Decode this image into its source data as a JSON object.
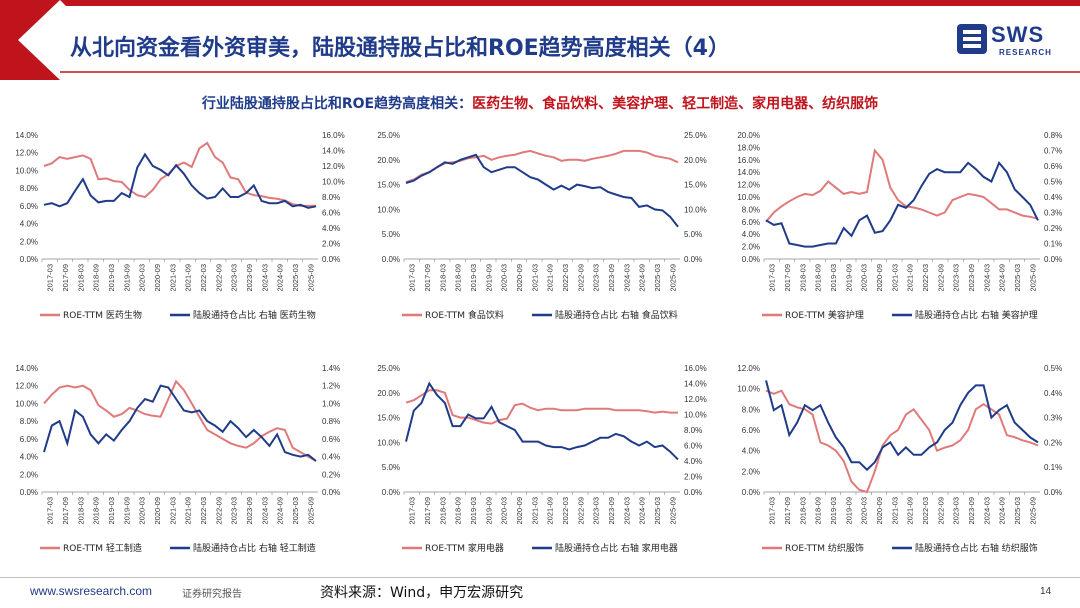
{
  "header": {
    "title": "从北向资金看外资审美，陆股通持股占比和ROE趋势高度相关（4）",
    "logo_text": "SWS",
    "logo_sub": "RESEARCH"
  },
  "subtitle": {
    "blue": "行业陆股通持股占比和ROE趋势高度相关：",
    "red": "医药生物、食品饮料、美容护理、轻工制造、家用电器、纺织服饰"
  },
  "colors": {
    "roe": "#e07a7a",
    "holding": "#1f3b8a",
    "brand": "#1f3b8a",
    "accent": "#c0141c"
  },
  "x_labels": [
    "2017-03",
    "2017-09",
    "2018-03",
    "2018-09",
    "2019-03",
    "2019-09",
    "2020-03",
    "2020-09",
    "2021-03",
    "2021-09",
    "2022-03",
    "2022-09",
    "2023-03",
    "2023-09",
    "2024-03",
    "2024-09",
    "2025-03",
    "2025-09"
  ],
  "chart_data": [
    {
      "type": "line",
      "legend": [
        "ROE-TTM 医药生物",
        "陆股通持仓占比 右轴 医药生物"
      ],
      "left_ticks": [
        "0.0%",
        "2.0%",
        "4.0%",
        "6.0%",
        "8.0%",
        "10.0%",
        "12.0%",
        "14.0%"
      ],
      "right_ticks": [
        "0.0%",
        "2.0%",
        "4.0%",
        "6.0%",
        "8.0%",
        "10.0%",
        "12.0%",
        "14.0%",
        "16.0%"
      ],
      "ylim_left": [
        0,
        14
      ],
      "ylim_right": [
        0,
        16
      ],
      "roe": [
        10.5,
        10.8,
        11.5,
        11.3,
        11.5,
        11.7,
        11.3,
        9.0,
        9.1,
        8.8,
        8.7,
        7.8,
        7.2,
        7.0,
        7.8,
        9.0,
        9.6,
        10.5,
        10.9,
        10.4,
        12.5,
        13.1,
        11.5,
        10.9,
        9.2,
        9.0,
        7.5,
        7.2,
        7.1,
        6.9,
        6.8,
        6.6,
        6.2,
        6.0,
        6.0,
        6.0
      ],
      "holding": [
        7.0,
        7.2,
        6.8,
        7.2,
        8.8,
        10.3,
        8.2,
        7.3,
        7.5,
        7.5,
        8.5,
        8.0,
        11.8,
        13.5,
        12.0,
        11.5,
        10.8,
        12.1,
        11.0,
        9.5,
        8.5,
        7.8,
        8.0,
        9.1,
        8.0,
        8.0,
        8.5,
        9.5,
        7.5,
        7.2,
        7.2,
        7.5,
        6.8,
        7.0,
        6.6,
        6.8
      ]
    },
    {
      "type": "line",
      "legend": [
        "ROE-TTM 食品饮料",
        "陆股通持仓占比 右轴 食品饮料"
      ],
      "left_ticks": [
        "0.0%",
        "5.0%",
        "10.0%",
        "15.0%",
        "20.0%",
        "25.0%"
      ],
      "right_ticks": [
        "0.0%",
        "5.0%",
        "10.0%",
        "15.0%",
        "20.0%",
        "25.0%"
      ],
      "ylim_left": [
        0,
        25
      ],
      "ylim_right": [
        0,
        25
      ],
      "roe": [
        15.5,
        16.0,
        17.0,
        17.5,
        18.5,
        19.3,
        19.5,
        19.8,
        20.3,
        20.5,
        20.8,
        20.0,
        20.5,
        20.8,
        21.0,
        21.5,
        21.8,
        21.3,
        20.8,
        20.5,
        19.8,
        20.0,
        20.0,
        19.8,
        20.2,
        20.5,
        20.8,
        21.2,
        21.8,
        21.8,
        21.8,
        21.5,
        20.8,
        20.5,
        20.2,
        19.5
      ],
      "holding": [
        15.3,
        15.8,
        16.8,
        17.5,
        18.5,
        19.5,
        19.2,
        20.0,
        20.5,
        21.0,
        18.5,
        17.5,
        18.0,
        18.5,
        18.5,
        17.5,
        16.5,
        16.0,
        15.0,
        14.0,
        14.8,
        14.0,
        15.0,
        14.7,
        14.3,
        14.5,
        13.5,
        13.0,
        12.5,
        12.3,
        10.5,
        10.8,
        10.0,
        9.8,
        8.5,
        6.5
      ]
    },
    {
      "type": "line",
      "legend": [
        "ROE-TTM 美容护理",
        "陆股通持仓占比 右轴 美容护理"
      ],
      "left_ticks": [
        "0.0%",
        "2.0%",
        "4.0%",
        "6.0%",
        "8.0%",
        "10.0%",
        "12.0%",
        "14.0%",
        "16.0%",
        "18.0%",
        "20.0%"
      ],
      "right_ticks": [
        "0.0%",
        "0.1%",
        "0.2%",
        "0.3%",
        "0.4%",
        "0.5%",
        "0.6%",
        "0.7%",
        "0.8%"
      ],
      "ylim_left": [
        0,
        20
      ],
      "ylim_right": [
        0,
        0.8
      ],
      "roe": [
        6.0,
        7.5,
        8.5,
        9.3,
        10.0,
        10.5,
        10.3,
        11.0,
        12.5,
        11.5,
        10.5,
        10.8,
        10.5,
        10.8,
        17.5,
        16.0,
        11.5,
        9.5,
        8.5,
        8.3,
        8.0,
        7.5,
        7.0,
        7.5,
        9.5,
        10.0,
        10.5,
        10.3,
        10.0,
        9.0,
        8.0,
        8.0,
        7.5,
        7.0,
        6.8,
        6.5
      ],
      "holding": [
        0.25,
        0.22,
        0.23,
        0.1,
        0.09,
        0.08,
        0.08,
        0.09,
        0.1,
        0.1,
        0.2,
        0.15,
        0.25,
        0.28,
        0.17,
        0.18,
        0.25,
        0.35,
        0.33,
        0.38,
        0.47,
        0.55,
        0.58,
        0.56,
        0.56,
        0.56,
        0.62,
        0.58,
        0.53,
        0.5,
        0.62,
        0.56,
        0.45,
        0.4,
        0.35,
        0.25
      ]
    },
    {
      "type": "line",
      "legend": [
        "ROE-TTM 轻工制造",
        "陆股通持仓占比 右轴 轻工制造"
      ],
      "left_ticks": [
        "0.0%",
        "2.0%",
        "4.0%",
        "6.0%",
        "8.0%",
        "10.0%",
        "12.0%",
        "14.0%"
      ],
      "right_ticks": [
        "0.0%",
        "0.2%",
        "0.4%",
        "0.6%",
        "0.8%",
        "1.0%",
        "1.2%",
        "1.4%"
      ],
      "ylim_left": [
        0,
        14
      ],
      "ylim_right": [
        0,
        1.4
      ],
      "roe": [
        10.0,
        11.0,
        11.8,
        12.0,
        11.8,
        12.0,
        11.5,
        9.8,
        9.2,
        8.5,
        8.8,
        9.5,
        9.2,
        8.8,
        8.6,
        8.5,
        10.5,
        12.5,
        11.5,
        10.0,
        8.5,
        7.0,
        6.5,
        6.0,
        5.5,
        5.2,
        5.0,
        5.5,
        6.3,
        6.8,
        7.2,
        7.0,
        5.0,
        4.5,
        4.0,
        3.5
      ],
      "holding": [
        0.45,
        0.75,
        0.8,
        0.55,
        0.92,
        0.85,
        0.65,
        0.55,
        0.65,
        0.58,
        0.7,
        0.8,
        0.95,
        1.05,
        1.02,
        1.2,
        1.18,
        1.05,
        0.92,
        0.9,
        0.92,
        0.8,
        0.75,
        0.68,
        0.8,
        0.72,
        0.62,
        0.7,
        0.62,
        0.52,
        0.65,
        0.45,
        0.42,
        0.4,
        0.42,
        0.35
      ]
    },
    {
      "type": "line",
      "legend": [
        "ROE-TTM 家用电器",
        "陆股通持仓占比 右轴 家用电器"
      ],
      "left_ticks": [
        "0.0%",
        "5.0%",
        "10.0%",
        "15.0%",
        "20.0%",
        "25.0%"
      ],
      "right_ticks": [
        "0.0%",
        "2.0%",
        "4.0%",
        "6.0%",
        "8.0%",
        "10.0%",
        "12.0%",
        "14.0%",
        "16.0%"
      ],
      "ylim_left": [
        0,
        25
      ],
      "ylim_right": [
        0,
        16
      ],
      "roe": [
        18.0,
        18.5,
        19.5,
        20.5,
        20.5,
        20.0,
        15.5,
        15.0,
        15.0,
        14.5,
        14.0,
        13.8,
        14.5,
        14.8,
        17.5,
        17.8,
        17.0,
        16.5,
        16.8,
        16.8,
        16.5,
        16.5,
        16.5,
        16.8,
        16.8,
        16.8,
        16.8,
        16.5,
        16.5,
        16.5,
        16.5,
        16.3,
        16.0,
        16.2,
        16.0,
        16.0
      ],
      "holding": [
        6.5,
        10.5,
        11.5,
        14.0,
        12.5,
        11.5,
        8.5,
        8.5,
        10.0,
        9.5,
        9.5,
        11.0,
        9.0,
        8.5,
        8.0,
        6.5,
        6.5,
        6.5,
        6.0,
        5.8,
        5.8,
        5.5,
        5.8,
        6.0,
        6.5,
        7.0,
        7.0,
        7.5,
        7.2,
        6.5,
        6.0,
        6.5,
        5.8,
        6.0,
        5.2,
        4.2
      ]
    },
    {
      "type": "line",
      "legend": [
        "ROE-TTM 纺织服饰",
        "陆股通持仓占比 右轴 纺织服饰"
      ],
      "left_ticks": [
        "0.0%",
        "2.0%",
        "4.0%",
        "6.0%",
        "8.0%",
        "10.0%",
        "12.0%"
      ],
      "right_ticks": [
        "0.0%",
        "0.1%",
        "0.2%",
        "0.3%",
        "0.4%",
        "0.5%"
      ],
      "ylim_left": [
        0,
        12
      ],
      "ylim_right": [
        0,
        0.5
      ],
      "roe": [
        9.8,
        9.5,
        9.8,
        8.5,
        8.2,
        8.0,
        7.5,
        4.8,
        4.5,
        4.0,
        3.0,
        1.0,
        0.2,
        0.0,
        2.0,
        4.5,
        5.5,
        6.0,
        7.5,
        8.0,
        7.0,
        6.0,
        4.0,
        4.3,
        4.5,
        5.0,
        6.0,
        8.0,
        8.5,
        8.0,
        7.5,
        5.5,
        5.3,
        5.0,
        4.8,
        4.5
      ],
      "holding": [
        0.45,
        0.33,
        0.35,
        0.23,
        0.28,
        0.35,
        0.33,
        0.35,
        0.28,
        0.22,
        0.18,
        0.12,
        0.12,
        0.09,
        0.12,
        0.18,
        0.2,
        0.15,
        0.18,
        0.15,
        0.15,
        0.18,
        0.2,
        0.25,
        0.28,
        0.35,
        0.4,
        0.43,
        0.43,
        0.3,
        0.33,
        0.35,
        0.28,
        0.25,
        0.22,
        0.2
      ]
    }
  ],
  "footer": {
    "url": "www.swsresearch.com",
    "type": "证券研究报告",
    "source": "资料来源：Wind，申万宏源研究",
    "page": "14"
  }
}
